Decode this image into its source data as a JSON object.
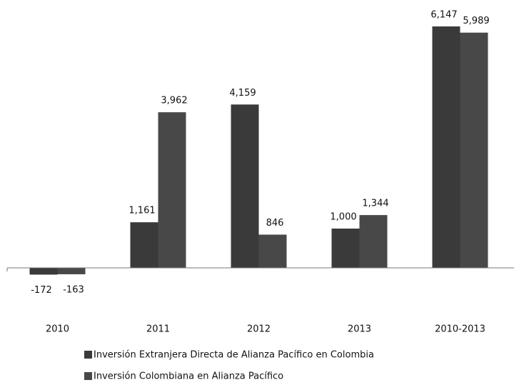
{
  "chart_data": {
    "type": "bar",
    "categories": [
      "2010",
      "2011",
      "2012",
      "2013",
      "2010-2013"
    ],
    "series": [
      {
        "name": "Inversión Extranjera Directa de Alianza Pacífico en Colombia",
        "color": "#3a3a3a",
        "values": [
          -172,
          1161,
          4159,
          1000,
          6147
        ],
        "value_labels": [
          "-172",
          "1,161",
          "4,159",
          "1,000",
          "6,147"
        ]
      },
      {
        "name": "Inversión Colombiana  en Alianza Pacífico",
        "color": "#484848",
        "values": [
          -163,
          3962,
          846,
          1344,
          5989
        ],
        "value_labels": [
          "-163",
          "3,962",
          "846",
          "1,344",
          "5,989"
        ]
      }
    ]
  }
}
